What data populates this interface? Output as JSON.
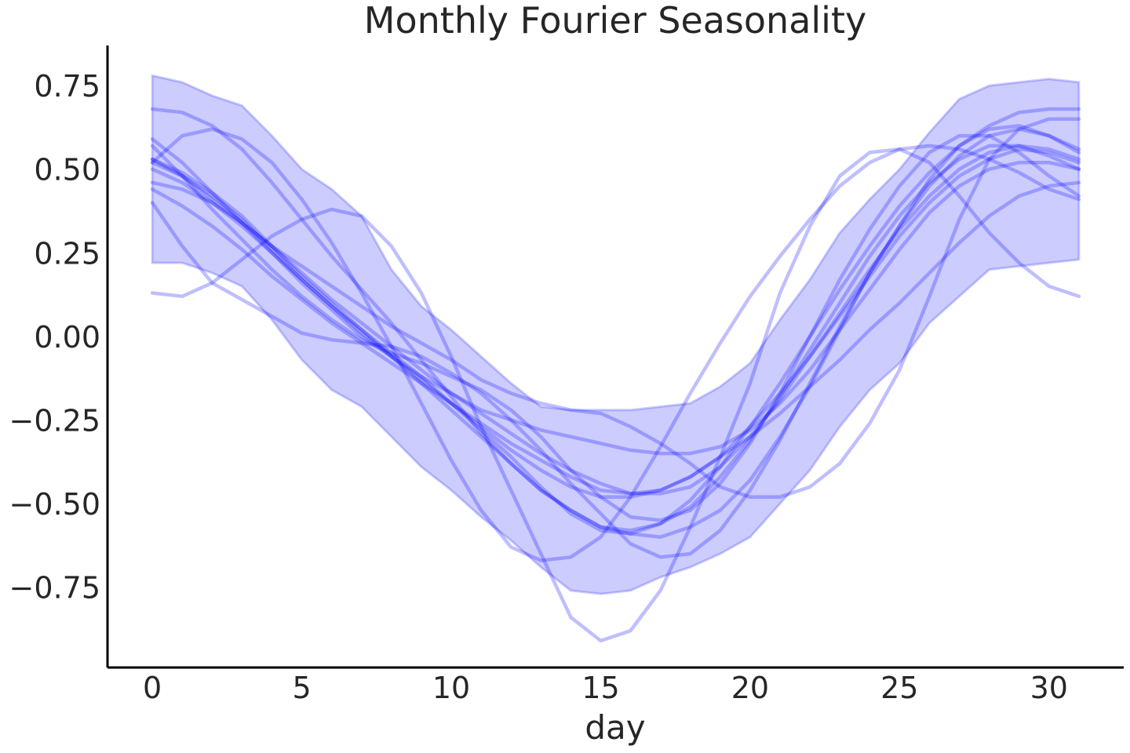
{
  "chart_data": {
    "type": "line",
    "title": "Monthly Fourier Seasonality",
    "xlabel": "day",
    "ylabel": "",
    "xlim": [
      -1.5,
      32.5
    ],
    "ylim": [
      -0.99,
      0.87
    ],
    "grid": false,
    "x_ticks": [
      0,
      5,
      10,
      15,
      20,
      25,
      30
    ],
    "x_tick_labels": [
      "0",
      "5",
      "10",
      "15",
      "20",
      "25",
      "30"
    ],
    "y_ticks": [
      0.75,
      0.5,
      0.25,
      0.0,
      -0.25,
      -0.5,
      -0.75
    ],
    "y_tick_labels": [
      "0.75",
      "0.50",
      "0.25",
      "0.00",
      "−0.25",
      "−0.50",
      "−0.75"
    ],
    "colors": {
      "series": "#0000ff",
      "band": "#0000ff",
      "text": "#262626",
      "axis": "#000000"
    },
    "x": [
      0,
      1,
      2,
      3,
      4,
      5,
      6,
      7,
      8,
      9,
      10,
      11,
      12,
      13,
      14,
      15,
      16,
      17,
      18,
      19,
      20,
      21,
      22,
      23,
      24,
      25,
      26,
      27,
      28,
      29,
      30,
      31
    ],
    "band": {
      "upper": [
        0.78,
        0.76,
        0.72,
        0.69,
        0.6,
        0.5,
        0.44,
        0.36,
        0.2,
        0.09,
        0.02,
        -0.06,
        -0.14,
        -0.21,
        -0.22,
        -0.22,
        -0.22,
        -0.21,
        -0.2,
        -0.15,
        -0.08,
        0.05,
        0.17,
        0.31,
        0.41,
        0.5,
        0.61,
        0.71,
        0.75,
        0.76,
        0.77,
        0.76
      ],
      "lower": [
        0.22,
        0.22,
        0.19,
        0.15,
        0.05,
        -0.07,
        -0.16,
        -0.21,
        -0.3,
        -0.39,
        -0.46,
        -0.54,
        -0.61,
        -0.69,
        -0.76,
        -0.77,
        -0.76,
        -0.72,
        -0.69,
        -0.65,
        -0.6,
        -0.5,
        -0.4,
        -0.27,
        -0.16,
        -0.08,
        0.04,
        0.12,
        0.2,
        0.21,
        0.22,
        0.23
      ]
    },
    "series": [
      {
        "values": [
          0.68,
          0.67,
          0.63,
          0.56,
          0.46,
          0.35,
          0.24,
          0.14,
          0.04,
          -0.07,
          -0.18,
          -0.29,
          -0.38,
          -0.46,
          -0.52,
          -0.57,
          -0.59,
          -0.6,
          -0.57,
          -0.52,
          -0.43,
          -0.3,
          -0.15,
          0.02,
          0.19,
          0.33,
          0.47,
          0.57,
          0.63,
          0.67,
          0.68,
          0.68
        ]
      },
      {
        "values": [
          0.13,
          0.12,
          0.16,
          0.23,
          0.3,
          0.35,
          0.38,
          0.36,
          0.27,
          0.13,
          -0.06,
          -0.27,
          -0.46,
          -0.65,
          -0.84,
          -0.91,
          -0.88,
          -0.76,
          -0.57,
          -0.36,
          -0.14,
          0.13,
          0.33,
          0.48,
          0.55,
          0.56,
          0.52,
          0.42,
          0.31,
          0.22,
          0.15,
          0.12
        ]
      },
      {
        "values": [
          0.59,
          0.52,
          0.43,
          0.34,
          0.25,
          0.16,
          0.08,
          0.0,
          -0.06,
          -0.12,
          -0.17,
          -0.22,
          -0.25,
          -0.28,
          -0.3,
          -0.32,
          -0.34,
          -0.35,
          -0.35,
          -0.33,
          -0.28,
          -0.2,
          -0.1,
          0.02,
          0.14,
          0.26,
          0.37,
          0.45,
          0.5,
          0.52,
          0.52,
          0.5
        ]
      },
      {
        "values": [
          0.46,
          0.44,
          0.4,
          0.34,
          0.27,
          0.19,
          0.11,
          0.04,
          -0.03,
          -0.1,
          -0.17,
          -0.23,
          -0.29,
          -0.35,
          -0.4,
          -0.44,
          -0.47,
          -0.47,
          -0.45,
          -0.39,
          -0.3,
          -0.19,
          -0.06,
          0.07,
          0.2,
          0.32,
          0.42,
          0.5,
          0.55,
          0.57,
          0.56,
          0.53
        ]
      },
      {
        "values": [
          0.57,
          0.48,
          0.38,
          0.29,
          0.2,
          0.12,
          0.05,
          -0.01,
          -0.05,
          -0.08,
          -0.12,
          -0.16,
          -0.22,
          -0.3,
          -0.4,
          -0.48,
          -0.54,
          -0.55,
          -0.52,
          -0.44,
          -0.32,
          -0.17,
          0.0,
          0.17,
          0.32,
          0.45,
          0.55,
          0.6,
          0.6,
          0.55,
          0.48,
          0.42
        ]
      },
      {
        "values": [
          0.52,
          0.6,
          0.62,
          0.59,
          0.52,
          0.41,
          0.28,
          0.13,
          -0.03,
          -0.2,
          -0.37,
          -0.52,
          -0.63,
          -0.67,
          -0.66,
          -0.6,
          -0.48,
          -0.33,
          -0.17,
          -0.02,
          0.12,
          0.24,
          0.35,
          0.45,
          0.52,
          0.56,
          0.57,
          0.56,
          0.53,
          0.49,
          0.44,
          0.41
        ]
      },
      {
        "values": [
          0.53,
          0.48,
          0.41,
          0.34,
          0.27,
          0.21,
          0.15,
          0.09,
          0.03,
          -0.02,
          -0.07,
          -0.13,
          -0.17,
          -0.2,
          -0.22,
          -0.23,
          -0.27,
          -0.32,
          -0.38,
          -0.45,
          -0.48,
          -0.48,
          -0.45,
          -0.38,
          -0.26,
          -0.1,
          0.12,
          0.35,
          0.53,
          0.62,
          0.65,
          0.65
        ]
      },
      {
        "values": [
          0.4,
          0.27,
          0.16,
          0.11,
          0.06,
          0.01,
          -0.01,
          -0.02,
          -0.03,
          -0.06,
          -0.11,
          -0.17,
          -0.25,
          -0.34,
          -0.44,
          -0.53,
          -0.62,
          -0.66,
          -0.65,
          -0.58,
          -0.46,
          -0.31,
          -0.14,
          0.03,
          0.19,
          0.33,
          0.45,
          0.54,
          0.6,
          0.62,
          0.6,
          0.55
        ]
      },
      {
        "values": [
          0.44,
          0.39,
          0.33,
          0.26,
          0.18,
          0.11,
          0.04,
          -0.02,
          -0.08,
          -0.14,
          -0.2,
          -0.27,
          -0.34,
          -0.4,
          -0.45,
          -0.48,
          -0.48,
          -0.46,
          -0.42,
          -0.36,
          -0.3,
          -0.23,
          -0.15,
          -0.07,
          0.02,
          0.1,
          0.19,
          0.28,
          0.36,
          0.42,
          0.45,
          0.46
        ]
      },
      {
        "values": [
          0.52,
          0.48,
          0.42,
          0.35,
          0.26,
          0.17,
          0.09,
          0.02,
          -0.05,
          -0.12,
          -0.2,
          -0.28,
          -0.36,
          -0.45,
          -0.53,
          -0.58,
          -0.59,
          -0.56,
          -0.49,
          -0.39,
          -0.27,
          -0.14,
          0.0,
          0.14,
          0.27,
          0.39,
          0.49,
          0.57,
          0.62,
          0.63,
          0.6,
          0.56
        ]
      },
      {
        "values": [
          0.5,
          0.46,
          0.4,
          0.33,
          0.25,
          0.17,
          0.09,
          0.01,
          -0.06,
          -0.13,
          -0.2,
          -0.26,
          -0.32,
          -0.37,
          -0.42,
          -0.46,
          -0.47,
          -0.46,
          -0.42,
          -0.36,
          -0.27,
          -0.17,
          -0.06,
          0.06,
          0.18,
          0.3,
          0.4,
          0.48,
          0.53,
          0.56,
          0.55,
          0.52
        ]
      },
      {
        "values": [
          0.53,
          0.49,
          0.43,
          0.36,
          0.27,
          0.18,
          0.1,
          0.02,
          -0.06,
          -0.14,
          -0.22,
          -0.3,
          -0.38,
          -0.46,
          -0.52,
          -0.57,
          -0.58,
          -0.56,
          -0.51,
          -0.42,
          -0.31,
          -0.18,
          -0.04,
          0.1,
          0.24,
          0.36,
          0.46,
          0.53,
          0.57,
          0.57,
          0.54,
          0.5
        ]
      }
    ]
  }
}
